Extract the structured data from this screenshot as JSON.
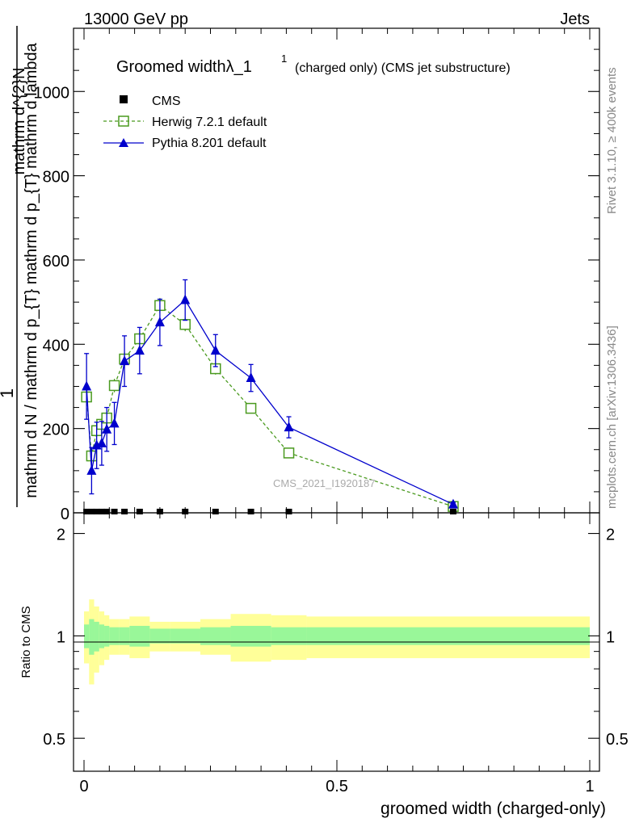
{
  "header": {
    "energy": "13000 GeV pp",
    "category": "Jets"
  },
  "side_labels": {
    "rivet": "Rivet 3.1.10, ≥ 400k events",
    "mcplots": "mcplots.cern.ch [arXiv:1306.3436]"
  },
  "chart_data": {
    "type": "line",
    "title_main": "Groomed widthλ_1",
    "title_sup": "1",
    "title_rest": "(charged only) (CMS jet substructure)",
    "watermark": "CMS_2021_I1920187",
    "ylabel_num": "1",
    "ylabel_num_line1": "mathrm d^{2}N",
    "ylabel_den": "mathrm d N / mathrm d p_{T} mathrm d p_{T} mathrm d lambda",
    "ratio_ylabel": "Ratio to CMS",
    "xlabel": "groomed width (charged-only)",
    "xlim": [
      0,
      1
    ],
    "ylim": [
      0,
      1150
    ],
    "ratio_ylim": [
      0.4,
      2.3
    ],
    "y_ticks": [
      "0",
      "200",
      "400",
      "600",
      "800",
      "1000"
    ],
    "x_ticks": [
      "0",
      "0.5",
      "1"
    ],
    "ratio_ticks": [
      "0.5",
      "1",
      "2"
    ],
    "legend": [
      "CMS",
      "Herwig 7.2.1 default",
      "Pythia 8.201 default"
    ],
    "series": [
      {
        "name": "CMS",
        "color": "#000000",
        "x": [
          0.005,
          0.015,
          0.025,
          0.035,
          0.045,
          0.06,
          0.08,
          0.11,
          0.15,
          0.2,
          0.26,
          0.33,
          0.405,
          0.73
        ],
        "values": [
          2,
          2,
          2,
          2,
          2,
          2,
          2,
          2,
          2,
          2,
          2,
          2,
          2,
          2
        ]
      },
      {
        "name": "Herwig 7.2.1 default",
        "color": "#4a9a1f",
        "x": [
          0.005,
          0.015,
          0.025,
          0.035,
          0.045,
          0.06,
          0.08,
          0.11,
          0.15,
          0.2,
          0.26,
          0.33,
          0.405,
          0.73
        ],
        "values": [
          275,
          135,
          195,
          210,
          225,
          302,
          365,
          413,
          492,
          447,
          342,
          248,
          142,
          15
        ],
        "errors": [
          22,
          12,
          14,
          14,
          14,
          16,
          16,
          16,
          18,
          16,
          14,
          10,
          8,
          3
        ]
      },
      {
        "name": "Pythia 8.201 default",
        "color": "#0000cc",
        "x": [
          0.005,
          0.015,
          0.025,
          0.035,
          0.045,
          0.06,
          0.08,
          0.11,
          0.15,
          0.2,
          0.26,
          0.33,
          0.405,
          0.73
        ],
        "values": [
          300,
          100,
          160,
          165,
          198,
          212,
          360,
          385,
          452,
          505,
          385,
          320,
          203,
          20
        ],
        "errors": [
          78,
          55,
          55,
          52,
          52,
          50,
          60,
          55,
          55,
          48,
          38,
          32,
          25,
          5
        ]
      }
    ],
    "ratio_bands": {
      "bin_edges": [
        0,
        0.01,
        0.02,
        0.03,
        0.04,
        0.05,
        0.07,
        0.09,
        0.13,
        0.17,
        0.23,
        0.29,
        0.37,
        0.44,
        1.0
      ],
      "inner": [
        [
          0.92,
          1.08
        ],
        [
          0.88,
          1.12
        ],
        [
          0.9,
          1.1
        ],
        [
          0.92,
          1.08
        ],
        [
          0.93,
          1.07
        ],
        [
          0.94,
          1.06
        ],
        [
          0.94,
          1.06
        ],
        [
          0.93,
          1.07
        ],
        [
          0.95,
          1.05
        ],
        [
          0.95,
          1.05
        ],
        [
          0.94,
          1.06
        ],
        [
          0.93,
          1.07
        ],
        [
          0.94,
          1.06
        ],
        [
          0.94,
          1.06
        ]
      ],
      "outer": [
        [
          0.83,
          1.18
        ],
        [
          0.72,
          1.28
        ],
        [
          0.78,
          1.22
        ],
        [
          0.82,
          1.18
        ],
        [
          0.85,
          1.15
        ],
        [
          0.88,
          1.12
        ],
        [
          0.88,
          1.12
        ],
        [
          0.86,
          1.14
        ],
        [
          0.9,
          1.1
        ],
        [
          0.9,
          1.1
        ],
        [
          0.88,
          1.12
        ],
        [
          0.84,
          1.16
        ],
        [
          0.85,
          1.15
        ],
        [
          0.86,
          1.14
        ]
      ]
    }
  }
}
